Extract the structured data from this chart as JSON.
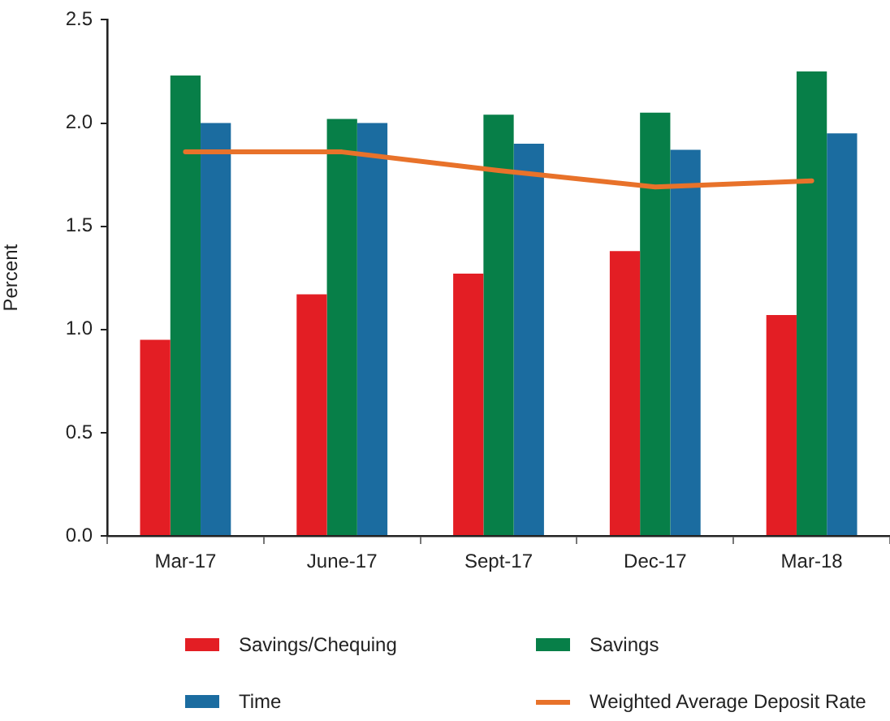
{
  "chart_data": {
    "type": "bar",
    "ylabel": "Percent",
    "categories": [
      "Mar-17",
      "June-17",
      "Sept-17",
      "Dec-17",
      "Mar-18"
    ],
    "series": [
      {
        "name": "Savings/Chequing",
        "color": "#e31e24",
        "values": [
          0.95,
          1.17,
          1.27,
          1.38,
          1.07
        ]
      },
      {
        "name": "Savings",
        "color": "#077f48",
        "values": [
          2.23,
          2.02,
          2.04,
          2.05,
          2.25
        ]
      },
      {
        "name": "Time",
        "color": "#1b6ca0",
        "values": [
          2.0,
          2.0,
          1.9,
          1.87,
          1.95
        ]
      },
      {
        "name": "Weighted Average Deposit Rate",
        "type": "line",
        "color": "#e8722a",
        "values": [
          1.86,
          1.86,
          1.77,
          1.69,
          1.72
        ]
      }
    ],
    "ylim": [
      0,
      2.5
    ],
    "yticks": [
      {
        "value": 0,
        "label": "0.0"
      },
      0.5,
      {
        "value": 1,
        "label": "1.0"
      },
      1.5,
      {
        "value": 2,
        "label": "2.0"
      },
      2.5
    ],
    "grid": false,
    "legend": "bottom",
    "marker": "none"
  }
}
